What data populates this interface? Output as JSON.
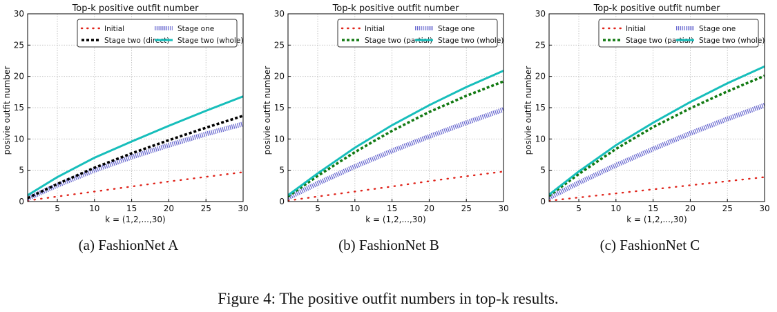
{
  "figure": {
    "caption": "Figure 4: The positive outfit numbers in top-k results."
  },
  "chart_data": [
    {
      "type": "line",
      "title": "Top-k positive outfit number",
      "subcaption": "(a)  FashionNet A",
      "xlabel": "k = (1,2,...,30)",
      "ylabel": "posivie outfit number",
      "xlim": [
        1,
        30
      ],
      "ylim": [
        0,
        30
      ],
      "xticks": [
        5,
        10,
        15,
        20,
        25,
        30
      ],
      "yticks": [
        0,
        5,
        10,
        15,
        20,
        25,
        30
      ],
      "grid": true,
      "legend_position": "top-right",
      "x": [
        1,
        5,
        10,
        15,
        20,
        25,
        30
      ],
      "series": [
        {
          "name": "Initial",
          "style": "dotted",
          "color": "#e0241b",
          "values": [
            0.15,
            0.8,
            1.6,
            2.4,
            3.2,
            3.95,
            4.7
          ]
        },
        {
          "name": "Stage one",
          "style": "hatched",
          "color": "#6a6ad0",
          "values": [
            0.5,
            2.6,
            5.0,
            7.1,
            9.0,
            10.8,
            12.4
          ]
        },
        {
          "name": "Stage two (direct)",
          "style": "dashed",
          "color": "#000000",
          "values": [
            0.55,
            2.8,
            5.4,
            7.7,
            9.8,
            11.8,
            13.7
          ]
        },
        {
          "name": "Stage two (whole)",
          "style": "solid",
          "color": "#17bebb",
          "values": [
            1.0,
            3.9,
            7.0,
            9.6,
            12.1,
            14.5,
            16.8
          ]
        }
      ]
    },
    {
      "type": "line",
      "title": "Top-k positive outfit number",
      "subcaption": "(b)  FashionNet B",
      "xlabel": "k = (1,2,...,30)",
      "ylabel": "posivie outfit number",
      "xlim": [
        1,
        30
      ],
      "ylim": [
        0,
        30
      ],
      "xticks": [
        5,
        10,
        15,
        20,
        25,
        30
      ],
      "yticks": [
        0,
        5,
        10,
        15,
        20,
        25,
        30
      ],
      "grid": true,
      "legend_position": "top-right",
      "x": [
        1,
        5,
        10,
        15,
        20,
        25,
        30
      ],
      "series": [
        {
          "name": "Initial",
          "style": "dotted",
          "color": "#e0241b",
          "values": [
            0.15,
            0.8,
            1.6,
            2.4,
            3.25,
            4.05,
            4.8
          ]
        },
        {
          "name": "Stage one",
          "style": "hatched",
          "color": "#6a6ad0",
          "values": [
            0.6,
            2.9,
            5.6,
            8.1,
            10.4,
            12.6,
            14.7
          ]
        },
        {
          "name": "Stage two (partial)",
          "style": "dashed",
          "color": "#137a13",
          "values": [
            0.8,
            4.1,
            7.9,
            11.3,
            14.3,
            16.9,
            19.2
          ]
        },
        {
          "name": "Stage two (whole)",
          "style": "solid",
          "color": "#17bebb",
          "values": [
            1.0,
            4.5,
            8.6,
            12.2,
            15.4,
            18.3,
            20.9
          ]
        }
      ]
    },
    {
      "type": "line",
      "title": "Top-k positive outfit number",
      "subcaption": "(c)  FashionNet C",
      "xlabel": "k = (1,2,...,30)",
      "ylabel": "posivie outfit number",
      "xlim": [
        1,
        30
      ],
      "ylim": [
        0,
        30
      ],
      "xticks": [
        5,
        10,
        15,
        20,
        25,
        30
      ],
      "yticks": [
        0,
        5,
        10,
        15,
        20,
        25,
        30
      ],
      "grid": true,
      "legend_position": "top-right",
      "x": [
        1,
        5,
        10,
        15,
        20,
        25,
        30
      ],
      "series": [
        {
          "name": "Initial",
          "style": "dotted",
          "color": "#e0241b",
          "values": [
            0.12,
            0.65,
            1.3,
            1.95,
            2.6,
            3.25,
            3.9
          ]
        },
        {
          "name": "Stage one",
          "style": "hatched",
          "color": "#6a6ad0",
          "values": [
            0.6,
            3.0,
            5.8,
            8.4,
            10.9,
            13.2,
            15.4
          ]
        },
        {
          "name": "Stage two (partial)",
          "style": "dashed",
          "color": "#137a13",
          "values": [
            0.9,
            4.4,
            8.4,
            11.9,
            14.9,
            17.6,
            20.1
          ]
        },
        {
          "name": "Stage two (whole)",
          "style": "solid",
          "color": "#17bebb",
          "values": [
            1.1,
            4.8,
            9.0,
            12.6,
            15.9,
            18.9,
            21.6
          ]
        }
      ]
    }
  ]
}
